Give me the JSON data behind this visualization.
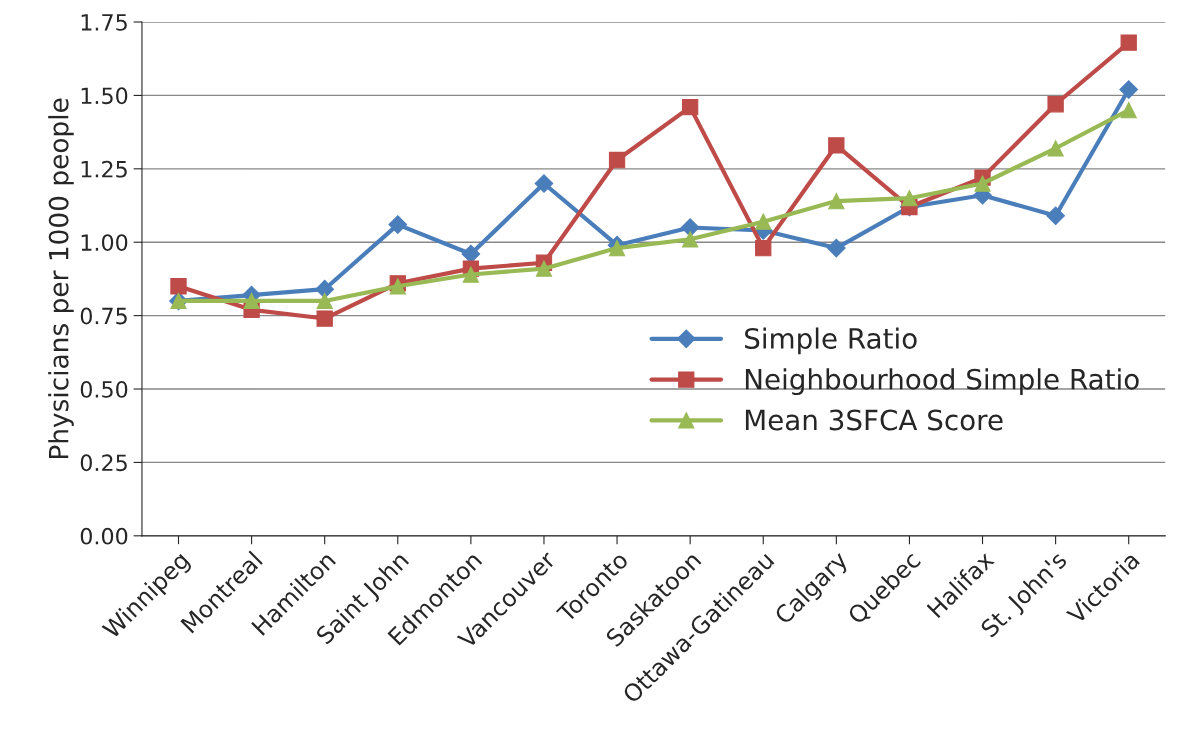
{
  "chart_data": {
    "type": "line",
    "ylabel": "Physicians per 1000 people",
    "categories": [
      "Winnipeg",
      "Montreal",
      "Hamilton",
      "Saint John",
      "Edmonton",
      "Vancouver",
      "Toronto",
      "Saskatoon",
      "Ottawa-Gatineau",
      "Calgary",
      "Quebec",
      "Halifax",
      "St. John's",
      "Victoria"
    ],
    "series": [
      {
        "name": "Simple Ratio",
        "color": "#4a7ebb",
        "marker": "diamond",
        "values": [
          0.8,
          0.82,
          0.84,
          1.06,
          0.96,
          1.2,
          0.99,
          1.05,
          1.04,
          0.98,
          1.12,
          1.16,
          1.09,
          1.52
        ]
      },
      {
        "name": "Neighbourhood Simple Ratio",
        "color": "#be4b48",
        "marker": "square",
        "values": [
          0.85,
          0.77,
          0.74,
          0.86,
          0.91,
          0.93,
          1.28,
          1.46,
          0.98,
          1.33,
          1.12,
          1.22,
          1.47,
          1.68
        ]
      },
      {
        "name": "Mean 3SFCA Score",
        "color": "#98b954",
        "marker": "triangle",
        "values": [
          0.8,
          0.8,
          0.8,
          0.85,
          0.89,
          0.91,
          0.98,
          1.01,
          1.07,
          1.14,
          1.15,
          1.2,
          1.32,
          1.45
        ]
      }
    ],
    "ylim": [
      0,
      1.75
    ],
    "yticks": [
      {
        "value": 0,
        "label": "0.00"
      },
      {
        "value": 0.25,
        "label": "0.25"
      },
      {
        "value": 0.5,
        "label": "0.50"
      },
      {
        "value": 0.75,
        "label": "0.75"
      },
      {
        "value": 1.0,
        "label": "1.00"
      },
      {
        "value": 1.25,
        "label": "1.25"
      },
      {
        "value": 1.5,
        "label": "1.50"
      },
      {
        "value": 1.75,
        "label": "1.75"
      }
    ],
    "grid": "y",
    "legend": "right",
    "line_style": "solid"
  }
}
